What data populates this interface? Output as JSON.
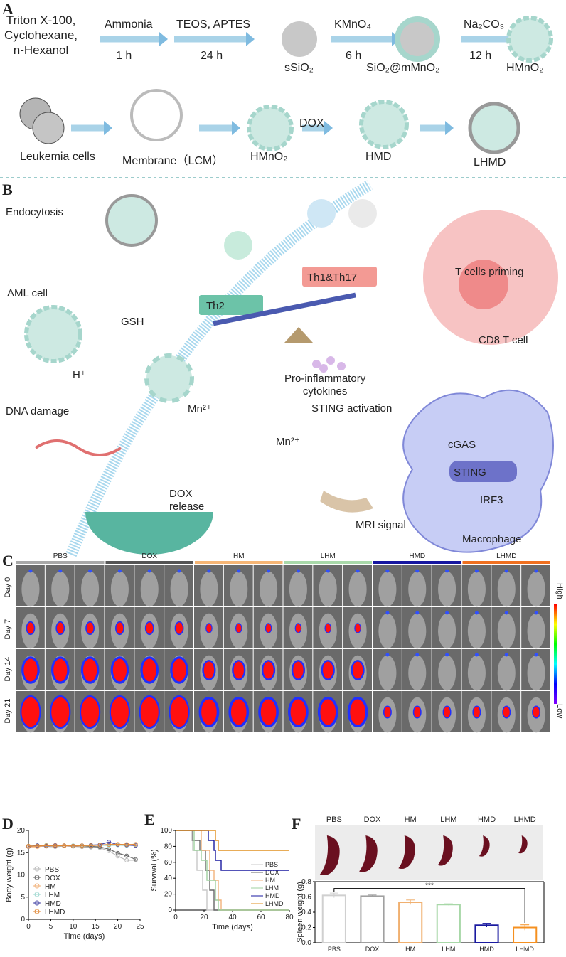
{
  "panel_labels": {
    "a": "A",
    "b": "B",
    "c": "C",
    "d": "D",
    "e": "E",
    "f": "F"
  },
  "panel_a": {
    "reagents": "Triton X-100,\nCyclohexane,\nn-Hexanol",
    "steps": [
      {
        "top": "Ammonia",
        "bottom": "1 h"
      },
      {
        "top": "TEOS, APTES",
        "bottom": "24 h"
      },
      {
        "top": "KMnO₄",
        "bottom": "6 h"
      },
      {
        "top": "Na₂CO₃",
        "bottom": "12 h"
      }
    ],
    "products": [
      "sSiO₂",
      "SiO₂@mMnO₂",
      "HMnO₂"
    ],
    "row2": {
      "leukemia": "Leukemia cells",
      "membrane": "Membrane（LCM）",
      "hmno2": "HMnO₂",
      "dox": "DOX",
      "hmd": "HMD",
      "lhmd": "LHMD"
    }
  },
  "panel_b": {
    "endocytosis": "Endocytosis",
    "aml": "AML cell",
    "gsh": "GSH",
    "h": "H⁺",
    "dna": "DNA damage",
    "mn1": "Mn²⁺",
    "mn2": "Mn²⁺",
    "dox_release": "DOX\nrelease",
    "th2": "Th2",
    "th1": "Th1&Th17",
    "priming": "T cells priming",
    "cd8": "CD8 T cell",
    "cytokines": "Pro-inflammatory\ncytokines",
    "sting_act": "STING activation",
    "cgas": "cGAS",
    "sting": "STING",
    "irf3": "IRF3",
    "mri": "MRI signal",
    "macrophage": "Macrophage"
  },
  "panel_c": {
    "groups": [
      {
        "name": "PBS",
        "color": "#a8a8a8"
      },
      {
        "name": "DOX",
        "color": "#555555"
      },
      {
        "name": "HM",
        "color": "#f6b676"
      },
      {
        "name": "LHM",
        "color": "#a9d9aa"
      },
      {
        "name": "HMD",
        "color": "#1616a0"
      },
      {
        "name": "LHMD",
        "color": "#f07020"
      }
    ],
    "days": [
      "Day 0",
      "Day 7",
      "Day 14",
      "Day 21"
    ],
    "scale_high": "High",
    "scale_low": "Low"
  },
  "chart_data": [
    {
      "type": "line",
      "xlabel": "Time (days)",
      "ylabel": "Body weight (g)",
      "xlim": [
        0,
        25
      ],
      "ylim": [
        0,
        20
      ],
      "xticks": [
        0,
        5,
        10,
        15,
        20,
        25
      ],
      "yticks": [
        0,
        5,
        10,
        15,
        20
      ],
      "legend": "left",
      "x": [
        0,
        2,
        4,
        6,
        8,
        10,
        12,
        14,
        16,
        18,
        20,
        22,
        24
      ],
      "series": [
        {
          "name": "PBS",
          "color": "#bbbbbb",
          "values": [
            16.4,
            16.5,
            16.4,
            16.3,
            16.5,
            16.4,
            16.3,
            16.2,
            16.1,
            15.4,
            14.2,
            13.3,
            13.3
          ]
        },
        {
          "name": "DOX",
          "color": "#666666",
          "values": [
            16.5,
            16.6,
            16.5,
            16.6,
            16.5,
            16.5,
            16.4,
            16.4,
            16.3,
            15.8,
            14.9,
            14.3,
            13.5
          ]
        },
        {
          "name": "HM",
          "color": "#f2b27a",
          "values": [
            16.3,
            16.3,
            16.6,
            16.7,
            16.5,
            16.5,
            16.4,
            16.6,
            16.7,
            16.9,
            16.8,
            16.9,
            16.7
          ]
        },
        {
          "name": "LHM",
          "color": "#9ed8d0",
          "values": [
            16.5,
            16.6,
            16.7,
            16.5,
            16.6,
            16.6,
            16.5,
            16.6,
            16.7,
            16.6,
            16.7,
            16.6,
            16.8
          ]
        },
        {
          "name": "HMD",
          "color": "#4a4aa8",
          "values": [
            16.4,
            16.6,
            16.5,
            16.6,
            16.6,
            16.5,
            16.6,
            16.7,
            16.8,
            17.4,
            16.8,
            16.7,
            16.6
          ]
        },
        {
          "name": "LHMD",
          "color": "#e08a3a",
          "values": [
            16.5,
            16.5,
            16.6,
            16.5,
            16.6,
            16.5,
            16.6,
            16.6,
            16.7,
            16.8,
            16.9,
            16.8,
            16.9
          ]
        }
      ]
    },
    {
      "type": "line",
      "subtype": "survival-step",
      "xlabel": "Time (days)",
      "ylabel": "Survival (%)",
      "xlim": [
        0,
        80
      ],
      "ylim": [
        0,
        100
      ],
      "xticks": [
        0,
        20,
        40,
        60,
        80
      ],
      "yticks": [
        0,
        20,
        40,
        60,
        80,
        100
      ],
      "legend": "bottom-right",
      "series": [
        {
          "name": "PBS",
          "color": "#c8c8c8",
          "x": [
            0,
            11,
            12,
            15,
            19,
            22
          ],
          "values": [
            100,
            87.5,
            75,
            50,
            25,
            0
          ]
        },
        {
          "name": "DOX",
          "color": "#666666",
          "x": [
            0,
            12,
            17,
            21,
            24,
            27
          ],
          "values": [
            100,
            87.5,
            75,
            50,
            25,
            0
          ]
        },
        {
          "name": "HM",
          "color": "#f2b27a",
          "x": [
            0,
            18,
            24,
            27,
            30,
            32
          ],
          "values": [
            100,
            75,
            50,
            37.5,
            12.5,
            0
          ]
        },
        {
          "name": "LHM",
          "color": "#9fd09f",
          "x": [
            0,
            13,
            18,
            22,
            28,
            30
          ],
          "values": [
            100,
            75,
            62.5,
            37.5,
            12.5,
            0
          ]
        },
        {
          "name": "HMD",
          "color": "#1a1aa0",
          "x": [
            0,
            23,
            27,
            28,
            32,
            80
          ],
          "values": [
            100,
            87.5,
            75,
            62.5,
            50,
            50
          ]
        },
        {
          "name": "LHMD",
          "color": "#e09020",
          "x": [
            0,
            28,
            29,
            30,
            80
          ],
          "values": [
            100,
            87.5,
            87.5,
            75,
            75
          ]
        }
      ]
    },
    {
      "type": "bar",
      "ylabel": "Spleen weight (g)",
      "ylim": [
        0,
        0.8
      ],
      "yticks": [
        0.0,
        0.2,
        0.4,
        0.6,
        0.8
      ],
      "categories": [
        "PBS",
        "DOX",
        "HM",
        "LHM",
        "HMD",
        "LHMD"
      ],
      "values": [
        0.62,
        0.61,
        0.53,
        0.5,
        0.23,
        0.2
      ],
      "errors": [
        0.03,
        0.015,
        0.03,
        0.01,
        0.025,
        0.035
      ],
      "colors": [
        "#d0d0d0",
        "#a0a0a0",
        "#f0b070",
        "#a8d8a8",
        "#1a1aa0",
        "#f59020"
      ],
      "annotation": {
        "from": "PBS",
        "to": "LHMD",
        "label": "***"
      },
      "photo_labels": [
        "PBS",
        "DOX",
        "HM",
        "LHM",
        "HMD",
        "LHMD"
      ]
    }
  ]
}
